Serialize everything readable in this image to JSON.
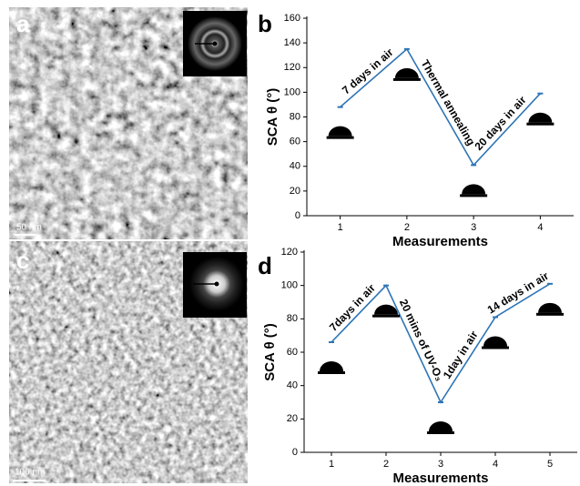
{
  "panels": [
    {
      "label": "a",
      "scale_bar": "50 nm"
    },
    {
      "label": "c",
      "scale_bar": "100 nm"
    }
  ],
  "chart_data": [
    {
      "type": "line",
      "panel_label": "b",
      "x_label": "Measurements",
      "y_label": "SCA θ (°)",
      "categories": [
        "1",
        "2",
        "3",
        "4"
      ],
      "values": [
        88,
        135,
        41,
        99
      ],
      "color": "#2e75b6",
      "ylim": [
        0,
        160
      ],
      "yticks": [
        0,
        20,
        40,
        60,
        80,
        100,
        120,
        140,
        160
      ],
      "annotations": [
        "7 days in air",
        "Thermal annealing",
        "20 days in air"
      ]
    },
    {
      "type": "line",
      "panel_label": "d",
      "x_label": "Measurements",
      "y_label": "SCA θ (°)",
      "categories": [
        "1",
        "2",
        "3",
        "4",
        "5"
      ],
      "values": [
        66,
        100,
        30,
        81,
        101
      ],
      "color": "#2e75b6",
      "ylim": [
        0,
        120
      ],
      "yticks": [
        0,
        20,
        40,
        60,
        80,
        100,
        120
      ],
      "annotations": [
        "7days in air",
        "20 mins of UV-O₃",
        "1day in air",
        "14 days in air"
      ]
    }
  ]
}
